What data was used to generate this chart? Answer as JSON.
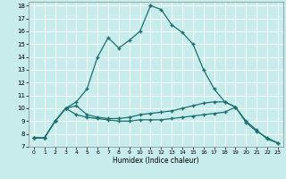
{
  "xlabel": "Humidex (Indice chaleur)",
  "bg_color": "#c8ecec",
  "line_color": "#1a7070",
  "grid_color": "#ffffff",
  "xlim": [
    -0.5,
    23.5
  ],
  "ylim": [
    7,
    18.3
  ],
  "yticks": [
    7,
    8,
    9,
    10,
    11,
    12,
    13,
    14,
    15,
    16,
    17,
    18
  ],
  "xticks": [
    0,
    1,
    2,
    3,
    4,
    5,
    6,
    7,
    8,
    9,
    10,
    11,
    12,
    13,
    14,
    15,
    16,
    17,
    18,
    19,
    20,
    21,
    22,
    23
  ],
  "c1x": [
    0,
    1,
    2,
    3,
    4,
    5,
    6,
    7,
    8,
    9,
    10,
    11
  ],
  "c1y": [
    7.7,
    7.7,
    9.0,
    10.0,
    10.5,
    11.5,
    14.0,
    15.5,
    14.7,
    15.3,
    16.0,
    18.0
  ],
  "c2x": [
    11,
    12,
    13,
    14,
    15,
    16,
    17,
    18,
    19
  ],
  "c2y": [
    18.0,
    17.7,
    16.5,
    15.9,
    15.0,
    13.0,
    11.5,
    10.5,
    10.1
  ],
  "c3x": [
    0,
    1,
    2,
    3,
    4,
    5,
    6,
    7,
    8,
    9,
    10,
    11,
    12,
    13,
    14,
    15,
    16,
    17,
    18,
    19,
    20,
    21,
    22,
    23
  ],
  "c3y": [
    7.7,
    7.7,
    9.0,
    10.0,
    9.5,
    9.3,
    9.2,
    9.1,
    9.0,
    9.0,
    9.1,
    9.1,
    9.1,
    9.2,
    9.3,
    9.4,
    9.5,
    9.6,
    9.7,
    10.1,
    9.0,
    8.3,
    7.6,
    7.3
  ],
  "c4x": [
    0,
    1,
    2,
    3,
    4,
    5,
    6,
    7,
    8,
    9,
    10,
    11,
    12,
    13,
    14,
    15,
    16,
    17,
    18,
    19,
    20,
    21,
    22,
    23
  ],
  "c4y": [
    7.7,
    7.7,
    9.0,
    10.0,
    10.2,
    9.5,
    9.3,
    9.2,
    9.2,
    9.3,
    9.5,
    9.6,
    9.7,
    9.8,
    10.0,
    10.2,
    10.4,
    10.5,
    10.5,
    10.1,
    8.9,
    8.2,
    7.7,
    7.3
  ]
}
